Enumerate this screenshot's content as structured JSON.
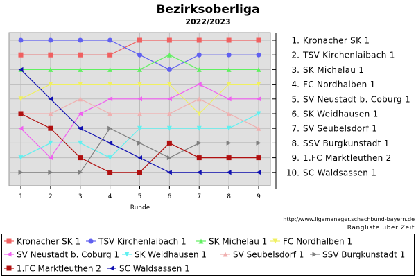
{
  "chart_data": {
    "type": "line",
    "title": "Bezirksoberliga",
    "subtitle": "2022/2023",
    "xlabel": "Runde",
    "ylabel": "",
    "x": [
      1,
      2,
      3,
      4,
      5,
      6,
      7,
      8,
      9
    ],
    "ylim": [
      1,
      10
    ],
    "y_inverted": true,
    "grid": true,
    "legend_position": "bottom",
    "right_axis_labels": [
      "1. Kronacher SK 1",
      "2. TSV Kirchenlaibach 1",
      "3. SK Michelau 1",
      "4. FC Nordhalben 1",
      "5. SV Neustadt b. Coburg 1",
      "6. SK Weidhausen 1",
      "7. SV Seubelsdorf 1",
      "8. SSV Burgkunstadt 1",
      "9. 1.FC Marktleuthen 2",
      "10. SC Waldsassen 1"
    ],
    "series": [
      {
        "name": "Kronacher SK 1",
        "color": "#f06060",
        "marker": "square",
        "values": [
          2,
          2,
          2,
          2,
          1,
          1,
          1,
          1,
          1
        ]
      },
      {
        "name": "TSV Kirchenlaibach 1",
        "color": "#6060f0",
        "marker": "circle",
        "values": [
          1,
          1,
          1,
          1,
          2,
          3,
          2,
          2,
          2
        ]
      },
      {
        "name": "SK Michelau 1",
        "color": "#60f060",
        "marker": "triangle-up",
        "values": [
          3,
          3,
          3,
          3,
          3,
          2,
          3,
          3,
          3
        ]
      },
      {
        "name": "FC Nordhalben 1",
        "color": "#f0f060",
        "marker": "triangle-down",
        "values": [
          5,
          4,
          4,
          4,
          4,
          4,
          6,
          4,
          4
        ]
      },
      {
        "name": "SV Neustadt b. Coburg 1",
        "color": "#f060f0",
        "marker": "triangle-left",
        "values": [
          7,
          9,
          6,
          5,
          5,
          5,
          4,
          5,
          5
        ]
      },
      {
        "name": "SK Weidhausen 1",
        "color": "#60f0f0",
        "marker": "triangle-down",
        "values": [
          9,
          8,
          8,
          9,
          7,
          7,
          7,
          7,
          6
        ]
      },
      {
        "name": "SV Seubelsdorf 1",
        "color": "#f0b0b0",
        "marker": "triangle-up",
        "values": [
          6,
          6,
          5,
          6,
          6,
          6,
          5,
          6,
          7
        ]
      },
      {
        "name": "SSV Burgkunstadt 1",
        "color": "#808080",
        "marker": "triangle-right",
        "values": [
          10,
          10,
          10,
          7,
          8,
          9,
          8,
          8,
          8
        ]
      },
      {
        "name": "1.FC Marktleuthen 2",
        "color": "#b01010",
        "marker": "square",
        "values": [
          6,
          7,
          9,
          10,
          10,
          8,
          9,
          9,
          9
        ]
      },
      {
        "name": "SC Waldsassen 1",
        "color": "#1010b0",
        "marker": "triangle-left",
        "values": [
          3,
          5,
          7,
          8,
          9,
          10,
          10,
          10,
          10
        ]
      }
    ]
  },
  "footer": {
    "url": "http://www.ligamanager.schachbund-bayern.de",
    "caption": "Rangliste über Zeit"
  }
}
